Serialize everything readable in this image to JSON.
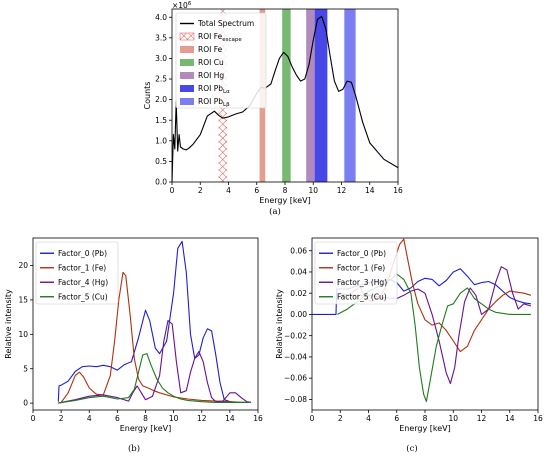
{
  "chart_data": [
    {
      "type": "line",
      "panel_label": "(a)",
      "xlabel": "Energy [keV]",
      "ylabel": "Counts",
      "y_multiplier": "×10",
      "y_multiplier_exp": "6",
      "xlim": [
        0,
        16
      ],
      "ylim": [
        0,
        4.2
      ],
      "xticks": [
        "0",
        "2",
        "4",
        "6",
        "8",
        "10",
        "12",
        "14",
        "16"
      ],
      "yticks": [
        "0.0",
        "0.5",
        "1.0",
        "1.5",
        "2.0",
        "2.5",
        "3.0",
        "3.5",
        "4.0"
      ],
      "ytick_values": [
        0,
        0.5,
        1.0,
        1.5,
        2.0,
        2.5,
        3.0,
        3.5,
        4.0
      ],
      "legend_position": "upper-left",
      "series": [
        {
          "name": "Total Spectrum",
          "color": "#000000",
          "x": [
            0.0,
            0.1,
            0.2,
            0.3,
            0.4,
            0.5,
            0.6,
            0.8,
            1.0,
            1.2,
            1.5,
            2.0,
            2.5,
            3.0,
            3.3,
            3.6,
            4.0,
            4.5,
            5.0,
            5.5,
            6.0,
            6.3,
            6.6,
            7.0,
            7.3,
            7.6,
            7.9,
            8.2,
            8.5,
            8.8,
            9.1,
            9.4,
            9.7,
            10.0,
            10.3,
            10.6,
            10.9,
            11.2,
            11.5,
            11.8,
            12.1,
            12.4,
            12.7,
            13.0,
            13.5,
            14.0,
            15.0,
            16.0
          ],
          "y": [
            0.0,
            1.15,
            0.8,
            1.95,
            0.75,
            1.15,
            0.85,
            0.8,
            0.78,
            0.82,
            0.92,
            1.15,
            1.6,
            1.72,
            1.62,
            1.55,
            1.58,
            1.65,
            1.7,
            1.85,
            2.15,
            2.3,
            2.28,
            2.38,
            2.7,
            3.0,
            3.15,
            3.05,
            2.8,
            2.6,
            2.45,
            2.5,
            2.85,
            3.45,
            3.95,
            4.02,
            3.7,
            3.05,
            2.45,
            2.2,
            2.25,
            2.45,
            2.42,
            2.1,
            1.45,
            0.95,
            0.55,
            0.35
          ]
        }
      ],
      "rois": [
        {
          "name": "ROI Fe",
          "sub": "escape",
          "x0": 3.3,
          "x1": 3.9,
          "color": "#e07070",
          "style": "hatch"
        },
        {
          "name": "ROI Fe",
          "sub": "",
          "x0": 6.2,
          "x1": 6.6,
          "color": "#e08878",
          "style": "solid"
        },
        {
          "name": "ROI Cu",
          "sub": "",
          "x0": 7.8,
          "x1": 8.4,
          "color": "#5aaa52",
          "style": "solid"
        },
        {
          "name": "ROI Hg",
          "sub": "",
          "x0": 9.5,
          "x1": 10.1,
          "color": "#a070b0",
          "style": "solid"
        },
        {
          "name": "ROI Pb",
          "sub": "Lα",
          "x0": 10.1,
          "x1": 11.0,
          "color": "#2020e0",
          "style": "solid"
        },
        {
          "name": "ROI Pb",
          "sub": "Lβ",
          "x0": 12.2,
          "x1": 13.0,
          "color": "#6060f0",
          "style": "solid"
        }
      ]
    },
    {
      "type": "line",
      "panel_label": "(b)",
      "xlabel": "Energy [keV]",
      "ylabel": "Relative intensity",
      "xlim": [
        0,
        16
      ],
      "ylim": [
        -1,
        24
      ],
      "xticks": [
        "0",
        "2",
        "4",
        "6",
        "8",
        "10",
        "12",
        "14",
        "16"
      ],
      "yticks": [
        "0",
        "5",
        "10",
        "15",
        "20"
      ],
      "ytick_values": [
        0,
        5,
        10,
        15,
        20
      ],
      "legend_position": "upper-left",
      "series": [
        {
          "name": "Factor_0 (Pb)",
          "color": "#1f1fcf",
          "x": [
            1.8,
            1.85,
            2.0,
            2.5,
            3.0,
            3.5,
            4.0,
            4.5,
            5.0,
            5.5,
            6.0,
            6.5,
            7.0,
            7.5,
            8.0,
            8.3,
            8.7,
            9.0,
            9.5,
            10.0,
            10.3,
            10.6,
            10.9,
            11.2,
            11.5,
            11.8,
            12.1,
            12.4,
            12.7,
            13.0,
            13.3,
            13.6,
            14.0,
            14.5,
            15.0,
            15.5
          ],
          "y": [
            0.2,
            2.5,
            2.6,
            3.2,
            4.6,
            5.3,
            5.4,
            5.3,
            5.5,
            5.3,
            4.8,
            5.6,
            6.0,
            9.5,
            13.5,
            12.0,
            8.0,
            7.2,
            9.0,
            16.0,
            22.5,
            23.5,
            19.0,
            10.0,
            6.5,
            7.0,
            9.5,
            10.8,
            10.5,
            7.0,
            3.0,
            0.5,
            0.2,
            0.1,
            0.1,
            0.1
          ]
        },
        {
          "name": "Factor_1 (Fe)",
          "color": "#b03010",
          "x": [
            1.8,
            2.0,
            2.5,
            3.0,
            3.3,
            3.6,
            4.0,
            4.5,
            5.0,
            5.5,
            5.8,
            6.1,
            6.4,
            6.6,
            6.9,
            7.2,
            7.5,
            7.8,
            8.2,
            8.6,
            9.0,
            10.0,
            11.0,
            12.0,
            13.0,
            14.0,
            15.0,
            15.5
          ],
          "y": [
            0.0,
            0.1,
            1.5,
            4.0,
            4.5,
            3.8,
            2.2,
            1.3,
            1.2,
            4.0,
            9.0,
            15.0,
            19.0,
            18.5,
            13.0,
            6.5,
            3.5,
            2.5,
            2.2,
            1.8,
            1.5,
            0.9,
            0.6,
            0.4,
            0.3,
            0.2,
            0.1,
            0.1
          ]
        },
        {
          "name": "Factor_4 (Hg)",
          "color": "#6a1090",
          "x": [
            1.8,
            3.0,
            4.0,
            5.0,
            6.0,
            6.8,
            7.1,
            7.4,
            7.7,
            8.0,
            8.5,
            9.0,
            9.3,
            9.6,
            9.9,
            10.2,
            10.5,
            10.9,
            11.2,
            11.5,
            11.8,
            12.1,
            12.4,
            12.7,
            13.0,
            13.5,
            14.0,
            14.4,
            14.8,
            15.2,
            15.5
          ],
          "y": [
            0.0,
            0.5,
            1.0,
            1.2,
            0.8,
            0.3,
            1.5,
            2.5,
            1.5,
            0.5,
            1.0,
            4.0,
            9.0,
            12.0,
            11.5,
            6.0,
            1.5,
            1.8,
            4.5,
            6.5,
            7.5,
            6.0,
            3.0,
            0.8,
            0.2,
            0.3,
            1.5,
            1.5,
            0.8,
            0.2,
            0.1
          ]
        },
        {
          "name": "Factor_5 (Cu)",
          "color": "#1f7a1f",
          "x": [
            1.8,
            3.0,
            4.0,
            5.0,
            6.0,
            6.8,
            7.2,
            7.5,
            7.8,
            8.1,
            8.4,
            8.8,
            9.2,
            9.6,
            10.0,
            10.5,
            11.0,
            12.0,
            13.0,
            14.0,
            15.0,
            15.5
          ],
          "y": [
            0.0,
            0.4,
            0.8,
            1.0,
            0.6,
            0.8,
            2.0,
            4.5,
            7.0,
            7.2,
            5.5,
            3.5,
            2.2,
            1.5,
            1.0,
            0.6,
            0.4,
            0.2,
            0.1,
            0.1,
            0.1,
            0.1
          ]
        }
      ]
    },
    {
      "type": "line",
      "panel_label": "(c)",
      "xlabel": "Energy [keV]",
      "ylabel": "Relative intensity",
      "xlim": [
        0,
        16
      ],
      "ylim": [
        -0.09,
        0.072
      ],
      "xticks": [
        "0",
        "2",
        "4",
        "6",
        "8",
        "10",
        "12",
        "14",
        "16"
      ],
      "yticks": [
        "−0.08",
        "−0.06",
        "−0.04",
        "−0.02",
        "0.00",
        "0.02",
        "0.04",
        "0.06"
      ],
      "ytick_values": [
        -0.08,
        -0.06,
        -0.04,
        -0.02,
        0.0,
        0.02,
        0.04,
        0.06
      ],
      "legend_position": "upper-left",
      "series": [
        {
          "name": "Factor_0 (Pb)",
          "color": "#1f1fcf",
          "x": [
            0.0,
            1.7,
            1.75,
            2.0,
            2.5,
            3.0,
            3.5,
            4.0,
            4.5,
            5.0,
            5.5,
            6.0,
            6.5,
            7.0,
            7.5,
            8.0,
            8.5,
            9.0,
            9.5,
            10.0,
            10.5,
            11.0,
            11.5,
            12.0,
            12.5,
            13.0,
            13.5,
            14.0,
            14.5,
            15.0,
            15.5
          ],
          "y": [
            0.0,
            0.0,
            0.024,
            0.024,
            0.024,
            0.026,
            0.028,
            0.03,
            0.031,
            0.032,
            0.033,
            0.03,
            0.022,
            0.025,
            0.031,
            0.034,
            0.033,
            0.027,
            0.032,
            0.04,
            0.043,
            0.036,
            0.028,
            0.03,
            0.031,
            0.028,
            0.022,
            0.016,
            0.013,
            0.011,
            0.01
          ]
        },
        {
          "name": "Factor_1 (Fe)",
          "color": "#b03010",
          "x": [
            1.8,
            2.5,
            3.0,
            3.4,
            3.8,
            4.2,
            4.8,
            5.3,
            5.8,
            6.2,
            6.5,
            6.8,
            7.1,
            7.5,
            8.0,
            8.5,
            9.0,
            9.5,
            10.0,
            10.5,
            11.0,
            11.5,
            12.0,
            12.5,
            13.0,
            13.5,
            14.0,
            15.0,
            15.5
          ],
          "y": [
            0.02,
            0.018,
            0.022,
            0.026,
            0.015,
            0.012,
            0.016,
            0.028,
            0.05,
            0.066,
            0.071,
            0.05,
            0.03,
            0.01,
            -0.005,
            -0.01,
            -0.008,
            -0.015,
            -0.025,
            -0.035,
            -0.03,
            -0.015,
            -0.005,
            0.005,
            0.012,
            0.018,
            0.022,
            0.02,
            0.018
          ]
        },
        {
          "name": "Factor_3 (Hg)",
          "color": "#6a1090",
          "x": [
            1.8,
            3.0,
            4.0,
            5.0,
            6.0,
            6.5,
            7.0,
            7.5,
            8.0,
            8.5,
            9.0,
            9.5,
            9.8,
            10.1,
            10.4,
            10.8,
            11.2,
            11.6,
            12.0,
            12.5,
            13.0,
            13.4,
            13.8,
            14.2,
            14.6,
            15.0,
            15.5
          ],
          "y": [
            0.02,
            0.018,
            0.018,
            0.016,
            0.015,
            0.018,
            0.022,
            0.024,
            0.02,
            0.0,
            -0.025,
            -0.055,
            -0.065,
            -0.05,
            -0.02,
            0.012,
            0.025,
            0.018,
            0.0,
            0.005,
            0.03,
            0.045,
            0.042,
            0.02,
            0.005,
            0.01,
            0.008
          ]
        },
        {
          "name": "Factor_5 (Cu)",
          "color": "#1f7a1f",
          "x": [
            1.8,
            2.5,
            3.0,
            3.5,
            4.0,
            4.5,
            5.0,
            5.5,
            6.0,
            6.5,
            7.0,
            7.3,
            7.6,
            7.9,
            8.1,
            8.4,
            8.8,
            9.2,
            9.6,
            10.0,
            10.5,
            11.0,
            11.5,
            12.0,
            12.5,
            13.0,
            14.0,
            15.0,
            15.5
          ],
          "y": [
            0.0,
            0.005,
            0.01,
            0.015,
            0.022,
            0.025,
            0.028,
            0.032,
            0.038,
            0.033,
            0.02,
            -0.01,
            -0.05,
            -0.075,
            -0.082,
            -0.06,
            -0.03,
            -0.01,
            0.008,
            0.01,
            0.02,
            0.025,
            0.015,
            0.01,
            0.005,
            0.002,
            0.0,
            0.0,
            0.0
          ]
        }
      ]
    }
  ]
}
